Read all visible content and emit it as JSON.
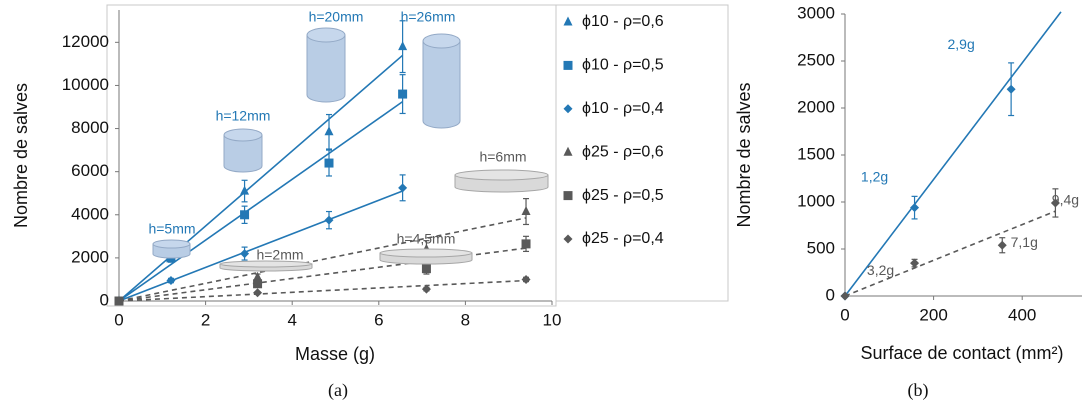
{
  "chart_data": [
    {
      "type": "scatter",
      "caption": "(a)",
      "xlabel": "Masse (g)",
      "ylabel": "Nombre de salves",
      "xlim": [
        0,
        10
      ],
      "xticks": [
        0,
        2,
        4,
        6,
        8,
        10
      ],
      "ylim": [
        0,
        13500
      ],
      "yticks": [
        0,
        2000,
        4000,
        6000,
        8000,
        10000,
        12000
      ],
      "legend": "right",
      "series": [
        {
          "name": "ϕ10 - ρ=0,6",
          "color": "#2378b5",
          "marker": "triangle",
          "trend_style": "solid",
          "trend_slope": 1740,
          "x": [
            0,
            1.2,
            2.9,
            4.85,
            6.55
          ],
          "values": [
            0,
            2500,
            5100,
            7850,
            11800
          ],
          "errors": [
            0,
            300,
            500,
            800,
            1200
          ]
        },
        {
          "name": "ϕ10 - ρ=0,5",
          "color": "#2378b5",
          "marker": "square",
          "trend_style": "solid",
          "trend_slope": 1412,
          "x": [
            0,
            1.2,
            2.9,
            4.85,
            6.55
          ],
          "values": [
            0,
            2000,
            4000,
            6400,
            9600
          ],
          "errors": [
            0,
            200,
            400,
            600,
            900
          ]
        },
        {
          "name": "ϕ10 - ρ=0,4",
          "color": "#2378b5",
          "marker": "diamond",
          "trend_style": "solid",
          "trend_slope": 779,
          "x": [
            0,
            1.2,
            2.9,
            4.85,
            6.55
          ],
          "values": [
            0,
            950,
            2200,
            3750,
            5250
          ],
          "errors": [
            0,
            100,
            300,
            400,
            600
          ]
        },
        {
          "name": "ϕ25 - ρ=0,6",
          "color": "#595959",
          "marker": "triangle",
          "trend_style": "dashed",
          "trend_slope": 410,
          "x": [
            0,
            3.2,
            7.1,
            9.4
          ],
          "values": [
            0,
            1100,
            2400,
            4150
          ],
          "errors": [
            0,
            150,
            400,
            600
          ]
        },
        {
          "name": "ϕ25 - ρ=0,5",
          "color": "#595959",
          "marker": "square",
          "trend_style": "dashed",
          "trend_slope": 261,
          "x": [
            0,
            3.2,
            7.1,
            9.4
          ],
          "values": [
            0,
            800,
            1500,
            2650
          ],
          "errors": [
            0,
            100,
            250,
            350
          ]
        },
        {
          "name": "ϕ25 - ρ=0,4",
          "color": "#595959",
          "marker": "diamond",
          "trend_style": "dashed",
          "trend_slope": 101,
          "x": [
            0,
            3.2,
            7.1,
            9.4
          ],
          "values": [
            0,
            380,
            550,
            1000
          ],
          "errors": [
            0,
            50,
            80,
            100
          ]
        }
      ],
      "annotations": [
        {
          "text": "h=5mm",
          "color": "#2378b5"
        },
        {
          "text": "h=12mm",
          "color": "#2378b5"
        },
        {
          "text": "h=20mm",
          "color": "#2378b5"
        },
        {
          "text": "h=26mm",
          "color": "#2378b5"
        },
        {
          "text": "h=2mm",
          "color": "#595959"
        },
        {
          "text": "h=4,5mm",
          "color": "#595959"
        },
        {
          "text": "h=6mm",
          "color": "#595959"
        }
      ]
    },
    {
      "type": "scatter",
      "caption": "(b)",
      "xlabel": "Surface de contact (mm²)",
      "ylabel": "Nombre de salves",
      "xlim": [
        0,
        535
      ],
      "xticks": [
        0,
        200,
        400
      ],
      "ylim": [
        0,
        3000
      ],
      "yticks": [
        0,
        500,
        1000,
        1500,
        2000,
        2500,
        3000
      ],
      "series": [
        {
          "color": "#2378b5",
          "marker": "diamond",
          "trend_style": "solid",
          "trend_slope": 6.2,
          "x": [
            0,
            157,
            375
          ],
          "values": [
            0,
            940,
            2200
          ],
          "errors": [
            0,
            120,
            280
          ],
          "point_labels": [
            null,
            "1,2g",
            "2,9g"
          ]
        },
        {
          "color": "#595959",
          "marker": "diamond",
          "trend_style": "dashed",
          "trend_slope": 1.9,
          "x": [
            0,
            157,
            355,
            475
          ],
          "values": [
            0,
            350,
            540,
            990
          ],
          "errors": [
            0,
            40,
            80,
            150
          ],
          "point_labels": [
            null,
            "3,2g",
            "7,1g",
            "9,4g"
          ]
        }
      ]
    }
  ]
}
